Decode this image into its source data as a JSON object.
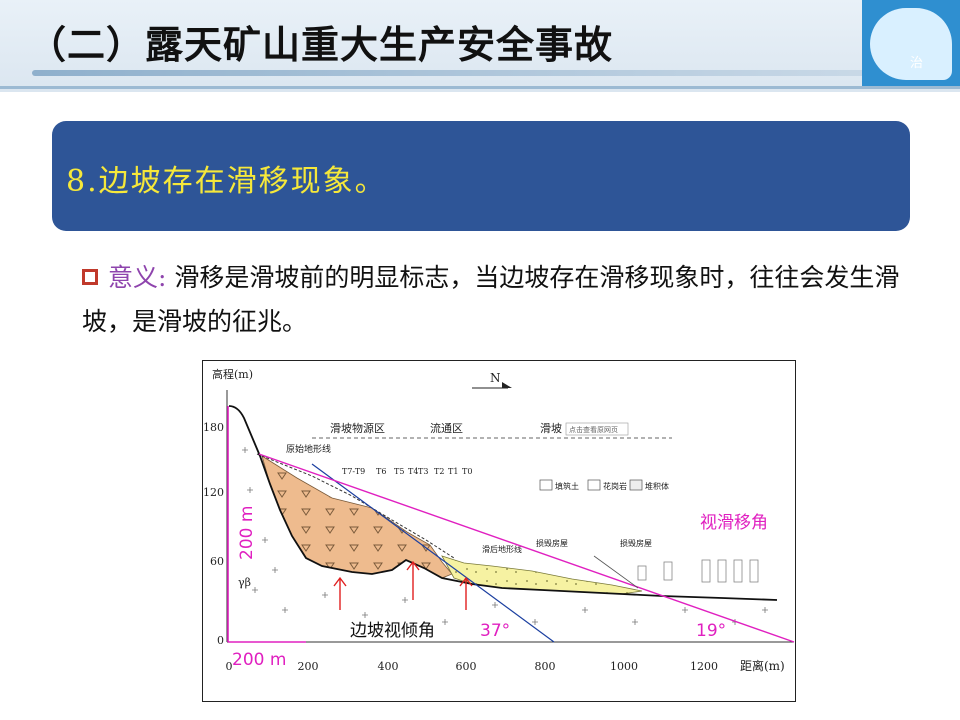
{
  "header": {
    "title": "（二）露天矿山重大生产安全事故",
    "logo_text": "治"
  },
  "banner": {
    "text": "8.边坡存在滑移现象。"
  },
  "body": {
    "keyword": "意义:",
    "text": "滑移是滑坡前的明显标志，当边坡存在滑移现象时，往往会发生滑坡，是滑坡的征兆。"
  },
  "diagram": {
    "y_axis_label": "高程(m)",
    "x_axis_label": "距离(m)",
    "y_ticks": [
      "0",
      "60",
      "120",
      "180"
    ],
    "x_ticks": [
      "0",
      "200",
      "400",
      "600",
      "800",
      "1000",
      "1200"
    ],
    "north_label": "N",
    "zones": [
      "滑坡物源区",
      "流通区",
      "滑坡"
    ],
    "stamp_label": "点击查看原网页",
    "original_terrain_label": "原始地形线",
    "deposit_label": "滑后地形线",
    "house_labels": [
      "损毁房屋",
      "损毁房屋"
    ],
    "legend": [
      "填筑土",
      "花岗岩",
      "堆积体"
    ],
    "trees": [
      "T7-T9",
      "T6",
      "T5",
      "T4",
      "T3",
      "T2",
      "T1",
      "T0"
    ],
    "rock_label": "γβ",
    "height_annotation": "200 m",
    "width_annotation": "200 m",
    "slope_view_angle_label": "边坡视倾角",
    "slope_view_angle_value": "37°",
    "slide_view_angle_label": "视滑移角",
    "slide_view_angle_value": "19°"
  },
  "colors": {
    "banner_bg": "#2e5597",
    "banner_text": "#f6e83a",
    "keyword": "#8e44ad",
    "bullet": "#c0392b",
    "source_fill": "#eebb8e",
    "deposit_fill": "#f6f2a2",
    "annotation_magenta": "#e020c0",
    "annotation_red": "#e02020",
    "dip_line": "#1b3fa0"
  }
}
